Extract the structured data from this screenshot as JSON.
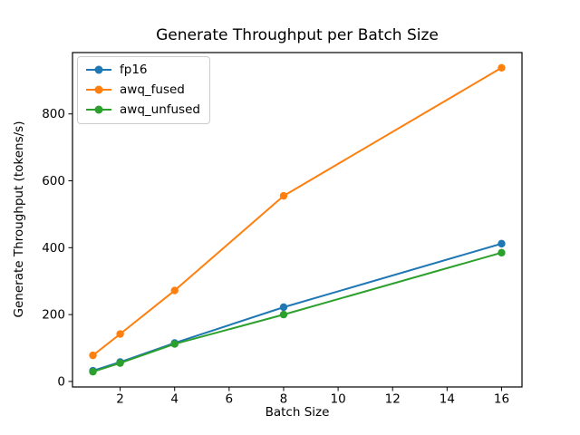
{
  "chart_data": {
    "type": "line",
    "title": "Generate Throughput per Batch Size",
    "xlabel": "Batch Size",
    "ylabel": "Generate Throughput (tokens/s)",
    "x": [
      1,
      2,
      4,
      8,
      16
    ],
    "series": [
      {
        "name": "fp16",
        "color": "#1f77b4",
        "values": [
          32,
          58,
          115,
          222,
          412
        ]
      },
      {
        "name": "awq_fused",
        "color": "#ff7f0e",
        "values": [
          78,
          142,
          272,
          555,
          938
        ]
      },
      {
        "name": "awq_unfused",
        "color": "#2ca02c",
        "values": [
          29,
          55,
          112,
          200,
          385
        ]
      }
    ],
    "xlim": [
      0.25,
      16.75
    ],
    "ylim": [
      -16.5,
      983.5
    ],
    "x_ticks": [
      2,
      4,
      6,
      8,
      10,
      12,
      14,
      16
    ],
    "y_ticks": [
      0,
      200,
      400,
      600,
      800
    ],
    "grid": false,
    "legend_position": "upper left",
    "marker": "o",
    "background": "#ffffff",
    "axes_edge_color": "#000000"
  }
}
